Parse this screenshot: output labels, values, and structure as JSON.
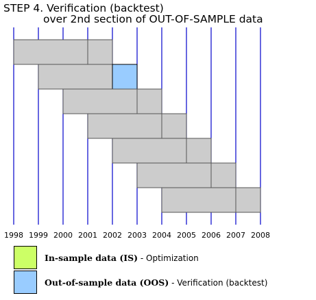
{
  "title": {
    "line1": "STEP 4. Verification (backtest)",
    "line2": "over 2nd section of OUT-OF-SAMPLE data"
  },
  "chart_data": {
    "type": "timeline",
    "years": [
      "1998",
      "1999",
      "2000",
      "2001",
      "2002",
      "2003",
      "2004",
      "2005",
      "2006",
      "2007",
      "2008"
    ],
    "runs": [
      {
        "is_start": 1998,
        "is_end": 2001,
        "oos_start": 2001,
        "oos_end": 2002,
        "highlight": false
      },
      {
        "is_start": 1999,
        "is_end": 2002,
        "oos_start": 2002,
        "oos_end": 2003,
        "highlight": true
      },
      {
        "is_start": 2000,
        "is_end": 2003,
        "oos_start": 2003,
        "oos_end": 2004,
        "highlight": false
      },
      {
        "is_start": 2001,
        "is_end": 2004,
        "oos_start": 2004,
        "oos_end": 2005,
        "highlight": false
      },
      {
        "is_start": 2002,
        "is_end": 2005,
        "oos_start": 2005,
        "oos_end": 2006,
        "highlight": false
      },
      {
        "is_start": 2003,
        "is_end": 2006,
        "oos_start": 2006,
        "oos_end": 2007,
        "highlight": false
      },
      {
        "is_start": 2004,
        "is_end": 2007,
        "oos_start": 2007,
        "oos_end": 2008,
        "highlight": false
      }
    ],
    "colors": {
      "gridline": "#0000cc",
      "block_fill": "#cccccc",
      "block_border": "#555555",
      "oos_highlight": "#99ccff",
      "is_legend": "#ccff66"
    }
  },
  "legend": {
    "is": {
      "label": "In-sample data (IS)",
      "desc": " - Optimization",
      "color": "#ccff66"
    },
    "oos": {
      "label": "Out-of-sample data (OOS)",
      "desc": " - Verification (backtest)",
      "color": "#99ccff"
    }
  }
}
